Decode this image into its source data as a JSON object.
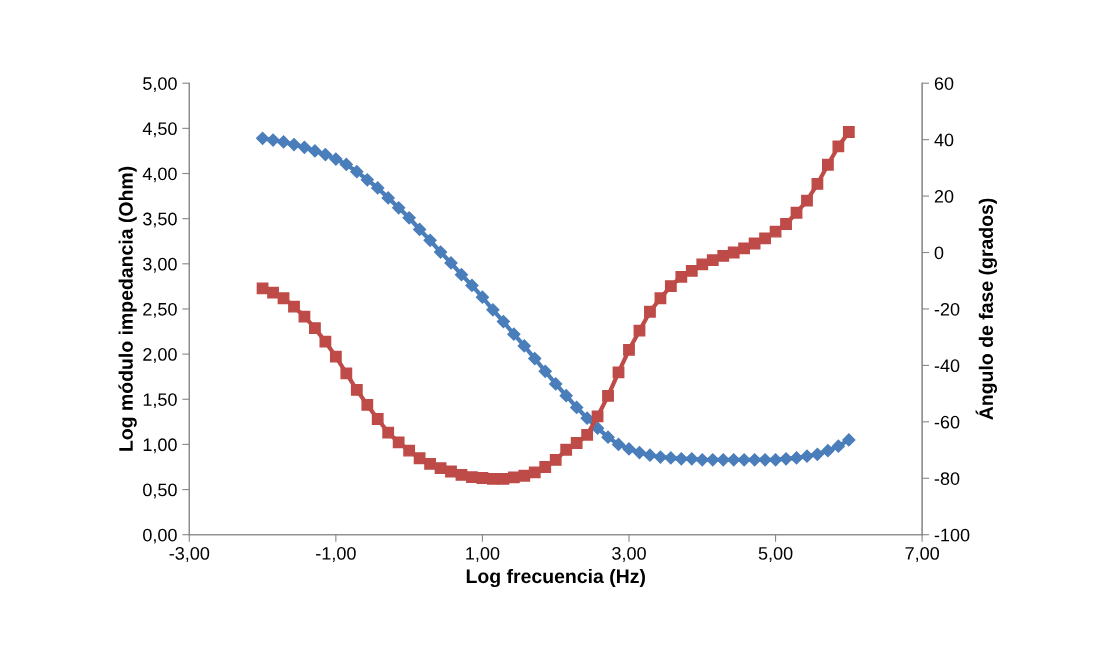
{
  "chart_data": {
    "type": "line",
    "xlabel": "Log frecuencia (Hz)",
    "ylabel": "Log módulo impedancia (Ohm)",
    "y2label": "Ángulo de fase (grados)",
    "x": [
      -2.0,
      -1.857,
      -1.714,
      -1.571,
      -1.429,
      -1.286,
      -1.143,
      -1.0,
      -0.857,
      -0.714,
      -0.571,
      -0.429,
      -0.286,
      -0.143,
      0.0,
      0.143,
      0.286,
      0.429,
      0.571,
      0.714,
      0.857,
      1.0,
      1.143,
      1.286,
      1.429,
      1.571,
      1.714,
      1.857,
      2.0,
      2.143,
      2.286,
      2.429,
      2.571,
      2.714,
      2.857,
      3.0,
      3.143,
      3.286,
      3.429,
      3.571,
      3.714,
      3.857,
      4.0,
      4.143,
      4.286,
      4.429,
      4.571,
      4.714,
      4.857,
      5.0,
      5.143,
      5.286,
      5.429,
      5.571,
      5.714,
      5.857,
      6.0
    ],
    "series": [
      {
        "color": "#4a7ebb",
        "marker": "diamond",
        "values": [
          4.39,
          4.37,
          4.35,
          4.32,
          4.29,
          4.25,
          4.21,
          4.16,
          4.1,
          4.02,
          3.93,
          3.84,
          3.73,
          3.62,
          3.51,
          3.38,
          3.26,
          3.13,
          3.01,
          2.88,
          2.76,
          2.63,
          2.49,
          2.36,
          2.22,
          2.09,
          1.95,
          1.81,
          1.67,
          1.54,
          1.41,
          1.29,
          1.18,
          1.08,
          1.0,
          0.95,
          0.91,
          0.88,
          0.86,
          0.85,
          0.84,
          0.84,
          0.83,
          0.83,
          0.83,
          0.83,
          0.83,
          0.83,
          0.83,
          0.83,
          0.84,
          0.85,
          0.87,
          0.89,
          0.93,
          0.98,
          1.05
        ]
      },
      {
        "color": "#be4b48",
        "marker": "square",
        "axis": "y2",
        "values": [
          -12.7,
          -14.2,
          -16.2,
          -19.2,
          -22.7,
          -26.8,
          -31.6,
          -36.9,
          -42.8,
          -48.7,
          -54.0,
          -59.0,
          -63.8,
          -67.3,
          -70.2,
          -72.9,
          -74.9,
          -76.4,
          -77.6,
          -78.8,
          -79.6,
          -79.9,
          -80.2,
          -80.2,
          -79.7,
          -79.1,
          -77.9,
          -76.0,
          -73.5,
          -69.9,
          -67.5,
          -64.6,
          -58.1,
          -50.8,
          -42.5,
          -34.5,
          -27.7,
          -21.0,
          -16.2,
          -11.9,
          -8.6,
          -6.5,
          -4.2,
          -2.7,
          -1.2,
          0.0,
          1.5,
          3.2,
          5.0,
          7.4,
          10.1,
          14.1,
          18.4,
          24.3,
          31.1,
          37.6,
          42.7
        ]
      }
    ],
    "xlim": [
      -3,
      7
    ],
    "xticks": [
      {
        "value": -3,
        "label": "-3,00"
      },
      {
        "value": -1,
        "label": "-1,00"
      },
      {
        "value": 1,
        "label": "1,00"
      },
      {
        "value": 3,
        "label": "3,00"
      },
      {
        "value": 5,
        "label": "5,00"
      },
      {
        "value": 7,
        "label": "7,00"
      }
    ],
    "ylim": [
      0,
      5
    ],
    "yticks": [
      {
        "value": 0,
        "label": "0,00"
      },
      {
        "value": 0.5,
        "label": "0,50"
      },
      {
        "value": 1,
        "label": "1,00"
      },
      {
        "value": 1.5,
        "label": "1,50"
      },
      {
        "value": 2,
        "label": "2,00"
      },
      {
        "value": 2.5,
        "label": "2,50"
      },
      {
        "value": 3,
        "label": "3,00"
      },
      {
        "value": 3.5,
        "label": "3,50"
      },
      {
        "value": 4,
        "label": "4,00"
      },
      {
        "value": 4.5,
        "label": "4,50"
      },
      {
        "value": 5,
        "label": "5,00"
      }
    ],
    "y2lim": [
      -100,
      60
    ],
    "y2ticks": [
      -100,
      -80,
      -60,
      -40,
      -20,
      0,
      20,
      40,
      60
    ],
    "grid": false,
    "legend": false,
    "line_style": "solid"
  }
}
